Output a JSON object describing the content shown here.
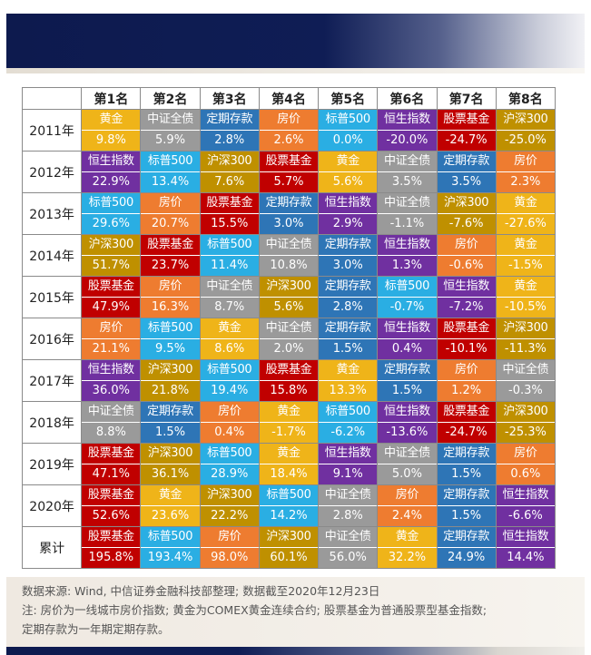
{
  "colors": {
    "黄金": "#efb419",
    "中证全债": "#9a9a9a",
    "定期存款": "#2e75b6",
    "房价": "#ee7c30",
    "标普500": "#2aaee3",
    "恒生指数": "#7030a0",
    "股票基金": "#c00000",
    "沪深300": "#bf9000"
  },
  "footnotes": {
    "source": "数据来源: Wind, 中信证券金融科技部整理; 数据截至2020年12月23日",
    "note1": "注: 房价为一线城市房价指数; 黄金为COMEX黄金连续合约; 股票基金为普通股票型基金指数;",
    "note2": "定期存款为一年期定期存款。"
  },
  "chart_data": {
    "type": "table",
    "columns": [
      "第1名",
      "第2名",
      "第3名",
      "第4名",
      "第5名",
      "第6名",
      "第7名",
      "第8名"
    ],
    "rows": [
      {
        "label": "2011年",
        "cells": [
          {
            "asset": "黄金",
            "value": "9.8%"
          },
          {
            "asset": "中证全债",
            "value": "5.9%"
          },
          {
            "asset": "定期存款",
            "value": "2.8%"
          },
          {
            "asset": "房价",
            "value": "2.6%"
          },
          {
            "asset": "标普500",
            "value": "0.0%"
          },
          {
            "asset": "恒生指数",
            "value": "-20.0%"
          },
          {
            "asset": "股票基金",
            "value": "-24.7%"
          },
          {
            "asset": "沪深300",
            "value": "-25.0%"
          }
        ]
      },
      {
        "label": "2012年",
        "cells": [
          {
            "asset": "恒生指数",
            "value": "22.9%"
          },
          {
            "asset": "标普500",
            "value": "13.4%"
          },
          {
            "asset": "沪深300",
            "value": "7.6%"
          },
          {
            "asset": "股票基金",
            "value": "5.7%"
          },
          {
            "asset": "黄金",
            "value": "5.6%"
          },
          {
            "asset": "中证全债",
            "value": "3.5%"
          },
          {
            "asset": "定期存款",
            "value": "3.5%"
          },
          {
            "asset": "房价",
            "value": "2.3%"
          }
        ]
      },
      {
        "label": "2013年",
        "cells": [
          {
            "asset": "标普500",
            "value": "29.6%"
          },
          {
            "asset": "房价",
            "value": "20.7%"
          },
          {
            "asset": "股票基金",
            "value": "15.5%"
          },
          {
            "asset": "定期存款",
            "value": "3.0%"
          },
          {
            "asset": "恒生指数",
            "value": "2.9%"
          },
          {
            "asset": "中证全债",
            "value": "-1.1%"
          },
          {
            "asset": "沪深300",
            "value": "-7.6%"
          },
          {
            "asset": "黄金",
            "value": "-27.6%"
          }
        ]
      },
      {
        "label": "2014年",
        "cells": [
          {
            "asset": "沪深300",
            "value": "51.7%"
          },
          {
            "asset": "股票基金",
            "value": "23.7%"
          },
          {
            "asset": "标普500",
            "value": "11.4%"
          },
          {
            "asset": "中证全债",
            "value": "10.8%"
          },
          {
            "asset": "定期存款",
            "value": "3.0%"
          },
          {
            "asset": "恒生指数",
            "value": "1.3%"
          },
          {
            "asset": "房价",
            "value": "-0.6%"
          },
          {
            "asset": "黄金",
            "value": "-1.5%"
          }
        ]
      },
      {
        "label": "2015年",
        "cells": [
          {
            "asset": "股票基金",
            "value": "47.9%"
          },
          {
            "asset": "房价",
            "value": "16.3%"
          },
          {
            "asset": "中证全债",
            "value": "8.7%"
          },
          {
            "asset": "沪深300",
            "value": "5.6%"
          },
          {
            "asset": "定期存款",
            "value": "2.8%"
          },
          {
            "asset": "标普500",
            "value": "-0.7%"
          },
          {
            "asset": "恒生指数",
            "value": "-7.2%"
          },
          {
            "asset": "黄金",
            "value": "-10.5%"
          }
        ]
      },
      {
        "label": "2016年",
        "cells": [
          {
            "asset": "房价",
            "value": "21.1%"
          },
          {
            "asset": "标普500",
            "value": "9.5%"
          },
          {
            "asset": "黄金",
            "value": "8.6%"
          },
          {
            "asset": "中证全债",
            "value": "2.0%"
          },
          {
            "asset": "定期存款",
            "value": "1.5%"
          },
          {
            "asset": "恒生指数",
            "value": "0.4%"
          },
          {
            "asset": "股票基金",
            "value": "-10.1%"
          },
          {
            "asset": "沪深300",
            "value": "-11.3%"
          }
        ]
      },
      {
        "label": "2017年",
        "cells": [
          {
            "asset": "恒生指数",
            "value": "36.0%"
          },
          {
            "asset": "沪深300",
            "value": "21.8%"
          },
          {
            "asset": "标普500",
            "value": "19.4%"
          },
          {
            "asset": "股票基金",
            "value": "15.8%"
          },
          {
            "asset": "黄金",
            "value": "13.3%"
          },
          {
            "asset": "定期存款",
            "value": "1.5%"
          },
          {
            "asset": "房价",
            "value": "1.2%"
          },
          {
            "asset": "中证全债",
            "value": "-0.3%"
          }
        ]
      },
      {
        "label": "2018年",
        "cells": [
          {
            "asset": "中证全债",
            "value": "8.8%"
          },
          {
            "asset": "定期存款",
            "value": "1.5%"
          },
          {
            "asset": "房价",
            "value": "0.4%"
          },
          {
            "asset": "黄金",
            "value": "-1.7%"
          },
          {
            "asset": "标普500",
            "value": "-6.2%"
          },
          {
            "asset": "恒生指数",
            "value": "-13.6%"
          },
          {
            "asset": "股票基金",
            "value": "-24.7%"
          },
          {
            "asset": "沪深300",
            "value": "-25.3%"
          }
        ]
      },
      {
        "label": "2019年",
        "cells": [
          {
            "asset": "股票基金",
            "value": "47.1%"
          },
          {
            "asset": "沪深300",
            "value": "36.1%"
          },
          {
            "asset": "标普500",
            "value": "28.9%"
          },
          {
            "asset": "黄金",
            "value": "18.4%"
          },
          {
            "asset": "恒生指数",
            "value": "9.1%"
          },
          {
            "asset": "中证全债",
            "value": "5.0%"
          },
          {
            "asset": "定期存款",
            "value": "1.5%"
          },
          {
            "asset": "房价",
            "value": "0.6%"
          }
        ]
      },
      {
        "label": "2020年",
        "cells": [
          {
            "asset": "股票基金",
            "value": "52.6%"
          },
          {
            "asset": "黄金",
            "value": "23.6%"
          },
          {
            "asset": "沪深300",
            "value": "22.2%"
          },
          {
            "asset": "标普500",
            "value": "14.2%"
          },
          {
            "asset": "中证全债",
            "value": "2.8%"
          },
          {
            "asset": "房价",
            "value": "2.4%"
          },
          {
            "asset": "定期存款",
            "value": "1.5%"
          },
          {
            "asset": "恒生指数",
            "value": "-6.6%"
          }
        ]
      },
      {
        "label": "累计",
        "cells": [
          {
            "asset": "股票基金",
            "value": "195.8%"
          },
          {
            "asset": "标普500",
            "value": "193.4%"
          },
          {
            "asset": "房价",
            "value": "98.0%"
          },
          {
            "asset": "沪深300",
            "value": "60.1%"
          },
          {
            "asset": "中证全债",
            "value": "56.0%"
          },
          {
            "asset": "黄金",
            "value": "32.2%"
          },
          {
            "asset": "定期存款",
            "value": "24.9%"
          },
          {
            "asset": "恒生指数",
            "value": "14.4%"
          }
        ]
      }
    ]
  }
}
